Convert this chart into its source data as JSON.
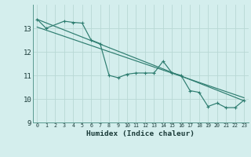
{
  "xlabel": "Humidex (Indice chaleur)",
  "bg_color": "#d4eeed",
  "grid_color": "#b8d8d5",
  "line_color": "#2e7d70",
  "xlim": [
    -0.5,
    23.5
  ],
  "ylim": [
    9,
    14
  ],
  "yticks": [
    9,
    10,
    11,
    12,
    13
  ],
  "xticks": [
    0,
    1,
    2,
    3,
    4,
    5,
    6,
    7,
    8,
    9,
    10,
    11,
    12,
    13,
    14,
    15,
    16,
    17,
    18,
    19,
    20,
    21,
    22,
    23
  ],
  "series1_x": [
    0,
    1,
    3,
    4,
    5,
    6,
    7,
    8,
    9,
    10,
    11,
    12,
    13,
    14,
    15,
    16,
    17,
    18,
    19,
    20,
    21,
    22,
    23
  ],
  "series1_y": [
    13.38,
    13.0,
    13.3,
    13.25,
    13.22,
    12.5,
    12.35,
    11.0,
    10.9,
    11.05,
    11.1,
    11.1,
    11.1,
    11.6,
    11.1,
    11.0,
    10.35,
    10.28,
    9.68,
    9.82,
    9.63,
    9.63,
    9.95
  ],
  "series2_x": [
    0,
    23
  ],
  "series2_y": [
    13.38,
    9.92
  ],
  "series3_x": [
    0,
    23
  ],
  "series3_y": [
    13.05,
    10.05
  ],
  "marker": "+"
}
